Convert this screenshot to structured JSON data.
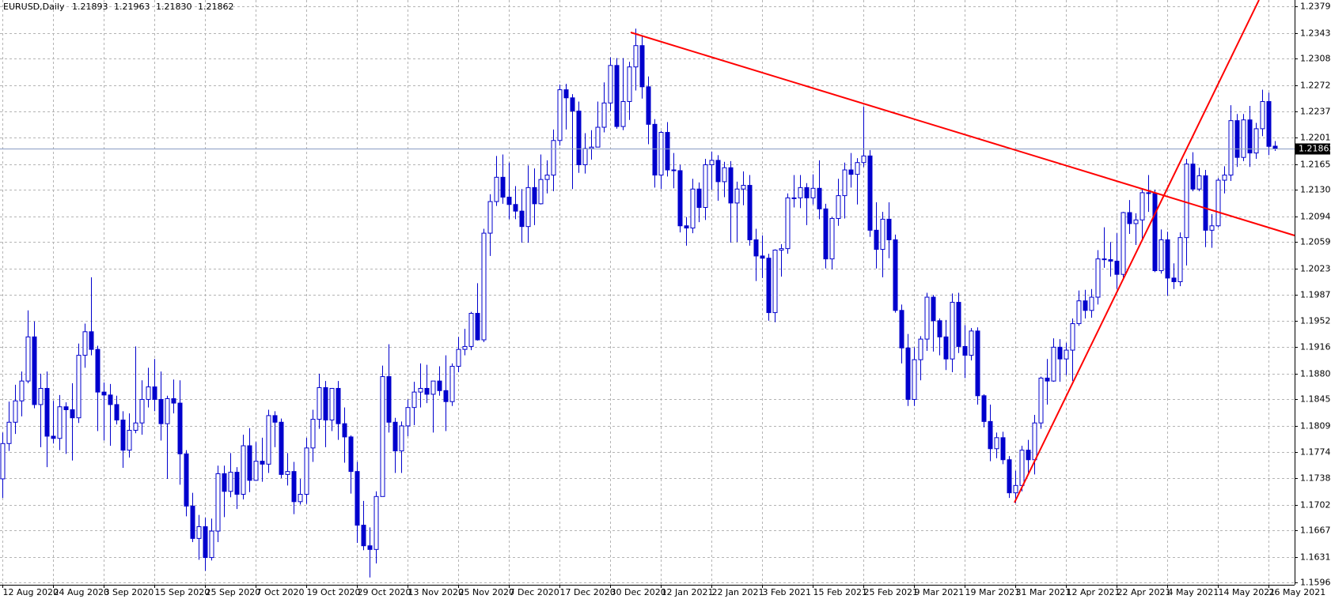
{
  "chart_data": {
    "type": "candlestick",
    "symbol": "EURUSD,Daily",
    "last_bar_labels": [
      "1.21893",
      "1.21963",
      "1.21830",
      "1.21862"
    ],
    "candle_color": "#0000cd",
    "bull_fill": "#ffffff",
    "bear_fill": "#0000cd",
    "price_line_color": "#8a9cc2",
    "grid": true,
    "ylim": [
      1.1593,
      1.2388
    ],
    "yticks": [
      {
        "value": 1.2379,
        "label": "1.23790"
      },
      {
        "value": 1.2343,
        "label": "1.23430"
      },
      {
        "value": 1.2308,
        "label": "1.23080"
      },
      {
        "value": 1.2272,
        "label": "1.22720"
      },
      {
        "value": 1.2237,
        "label": "1.22370"
      },
      {
        "value": 1.2201,
        "label": "1.22010"
      },
      {
        "value": 1.2165,
        "label": "1.21650"
      },
      {
        "value": 1.213,
        "label": "1.21300"
      },
      {
        "value": 1.2094,
        "label": "1.20940"
      },
      {
        "value": 1.2059,
        "label": "1.20590"
      },
      {
        "value": 1.2023,
        "label": "1.20230"
      },
      {
        "value": 1.1987,
        "label": "1.19870"
      },
      {
        "value": 1.1952,
        "label": "1.19520"
      },
      {
        "value": 1.1916,
        "label": "1.19160"
      },
      {
        "value": 1.188,
        "label": "1.18800"
      },
      {
        "value": 1.1845,
        "label": "1.18450"
      },
      {
        "value": 1.1809,
        "label": "1.18090"
      },
      {
        "value": 1.1774,
        "label": "1.17740"
      },
      {
        "value": 1.1738,
        "label": "1.17380"
      },
      {
        "value": 1.1702,
        "label": "1.17020"
      },
      {
        "value": 1.1667,
        "label": "1.16670"
      },
      {
        "value": 1.1631,
        "label": "1.16310"
      },
      {
        "value": 1.1596,
        "label": "1.15960"
      }
    ],
    "categories": [
      "12 Aug 2020",
      null,
      null,
      null,
      null,
      null,
      null,
      null,
      "24 Aug 2020",
      null,
      null,
      null,
      null,
      null,
      null,
      null,
      "3 Sep 2020",
      null,
      null,
      null,
      null,
      null,
      null,
      null,
      "15 Sep 2020",
      null,
      null,
      null,
      null,
      null,
      null,
      null,
      "25 Sep 2020",
      null,
      null,
      null,
      null,
      null,
      null,
      null,
      "7 Oct 2020",
      null,
      null,
      null,
      null,
      null,
      null,
      null,
      "19 Oct 2020",
      null,
      null,
      null,
      null,
      null,
      null,
      null,
      "29 Oct 2020",
      null,
      null,
      null,
      null,
      null,
      null,
      null,
      "13 Nov 2020",
      null,
      null,
      null,
      null,
      null,
      null,
      null,
      "25 Nov 2020",
      null,
      null,
      null,
      null,
      null,
      null,
      null,
      "7 Dec 2020",
      null,
      null,
      null,
      null,
      null,
      null,
      null,
      "17 Dec 2020",
      null,
      null,
      null,
      null,
      null,
      null,
      null,
      "30 Dec 2020",
      null,
      null,
      null,
      null,
      null,
      null,
      null,
      "12 Jan 2021",
      null,
      null,
      null,
      null,
      null,
      null,
      null,
      "22 Jan 2021",
      null,
      null,
      null,
      null,
      null,
      null,
      null,
      "3 Feb 2021",
      null,
      null,
      null,
      null,
      null,
      null,
      null,
      "15 Feb 2021",
      null,
      null,
      null,
      null,
      null,
      null,
      null,
      "25 Feb 2021",
      null,
      null,
      null,
      null,
      null,
      null,
      null,
      "9 Mar 2021",
      null,
      null,
      null,
      null,
      null,
      null,
      null,
      "19 Mar 2021",
      null,
      null,
      null,
      null,
      null,
      null,
      null,
      "31 Mar 2021",
      null,
      null,
      null,
      null,
      null,
      null,
      null,
      "12 Apr 2021",
      null,
      null,
      null,
      null,
      null,
      null,
      null,
      "22 Apr 2021",
      null,
      null,
      null,
      null,
      null,
      null,
      null,
      "4 May 2021",
      null,
      null,
      null,
      null,
      null,
      null,
      null,
      "14 May 2021",
      null,
      null,
      null,
      null,
      null,
      null,
      null,
      "26 May 2021",
      null
    ],
    "open": [
      1.1737,
      1.1785,
      1.1814,
      1.1843,
      1.187,
      1.193,
      1.1838,
      1.186,
      1.1795,
      1.1792,
      1.1835,
      1.1831,
      1.182,
      1.1905,
      1.1937,
      1.1913,
      1.1855,
      1.1851,
      1.1838,
      1.1817,
      1.1776,
      1.1803,
      1.1813,
      1.1845,
      1.1862,
      1.1845,
      1.1812,
      1.1846,
      1.184,
      1.1771,
      1.17,
      1.1656,
      1.1672,
      1.163,
      1.1666,
      1.1744,
      1.172,
      1.1746,
      1.1716,
      1.1782,
      1.1735,
      1.1761,
      1.1757,
      1.1823,
      1.1814,
      1.1743,
      1.1747,
      1.1706,
      1.1716,
      1.1779,
      1.1818,
      1.1861,
      1.1817,
      1.186,
      1.1812,
      1.1794,
      1.1747,
      1.1674,
      1.1646,
      1.1641,
      1.1713,
      1.1876,
      1.1814,
      1.1775,
      1.1809,
      1.1834,
      1.1855,
      1.186,
      1.1852,
      1.187,
      1.1857,
      1.1842,
      1.189,
      1.1913,
      1.1917,
      1.1962,
      1.1926,
      1.2071,
      1.2114,
      1.2147,
      1.212,
      1.211,
      1.2101,
      1.208,
      1.2133,
      1.2111,
      1.2144,
      1.215,
      1.2197,
      1.2266,
      1.2255,
      1.2237,
      1.2164,
      1.2186,
      1.2188,
      1.2215,
      1.2248,
      1.2299,
      1.2216,
      1.225,
      1.2297,
      1.2326,
      1.227,
      1.2219,
      1.215,
      1.2208,
      1.2157,
      1.2156,
      1.2081,
      1.2078,
      1.2131,
      1.2106,
      1.2164,
      1.217,
      1.2141,
      1.216,
      1.2112,
      1.2131,
      1.2136,
      1.2062,
      1.204,
      1.2037,
      1.1963,
      1.2048,
      1.205,
      1.2119,
      1.2119,
      1.2133,
      1.2119,
      1.2132,
      1.2104,
      1.2036,
      1.2091,
      1.2122,
      1.2157,
      1.2151,
      1.2167,
      1.2176,
      1.2075,
      1.2049,
      1.209,
      1.2062,
      1.1966,
      1.1915,
      1.1845,
      1.1899,
      1.1927,
      1.1984,
      1.1952,
      1.193,
      1.19,
      1.1977,
      1.1917,
      1.1905,
      1.1938,
      1.185,
      1.1815,
      1.1778,
      1.1793,
      1.1763,
      1.1718,
      1.1728,
      1.1776,
      1.1763,
      1.1813,
      1.1874,
      1.187,
      1.1916,
      1.19,
      1.1912,
      1.1948,
      1.1979,
      1.1966,
      1.1984,
      1.2036,
      1.2035,
      1.2033,
      1.2015,
      1.2099,
      1.2084,
      1.2089,
      1.2126,
      1.2125,
      1.202,
      1.2062,
      1.201,
      1.2005,
      1.2065,
      1.2165,
      1.2131,
      1.2149,
      1.2075,
      1.2081,
      1.2143,
      1.215,
      1.2224,
      1.2174,
      1.2225,
      1.218,
      1.2213,
      1.225,
      1.21893
    ],
    "high": [
      1.18,
      1.1842,
      1.1865,
      1.1883,
      1.1966,
      1.1951,
      1.188,
      1.1883,
      1.1843,
      1.1851,
      1.1841,
      1.1867,
      1.1921,
      1.1948,
      1.2011,
      1.1918,
      1.1868,
      1.1866,
      1.185,
      1.1829,
      1.1826,
      1.1917,
      1.1871,
      1.1888,
      1.19,
      1.1883,
      1.185,
      1.1872,
      1.1871,
      1.1776,
      1.1718,
      1.1688,
      1.1684,
      1.1683,
      1.1755,
      1.1755,
      1.1772,
      1.1753,
      1.1797,
      1.1806,
      1.1787,
      1.1793,
      1.1831,
      1.1829,
      1.1819,
      1.1772,
      1.176,
      1.1737,
      1.1793,
      1.1831,
      1.188,
      1.187,
      1.186,
      1.187,
      1.1834,
      1.1796,
      1.176,
      1.1707,
      1.1671,
      1.172,
      1.1891,
      1.192,
      1.182,
      1.1815,
      1.1845,
      1.1869,
      1.1894,
      1.1892,
      1.187,
      1.189,
      1.1905,
      1.1894,
      1.193,
      1.1941,
      1.1964,
      1.2003,
      1.2077,
      1.2124,
      1.2176,
      1.2178,
      1.2167,
      1.2135,
      1.2131,
      1.2163,
      1.2159,
      1.2178,
      1.217,
      1.2212,
      1.2273,
      1.2274,
      1.226,
      1.225,
      1.2207,
      1.2211,
      1.225,
      1.2276,
      1.231,
      1.2309,
      1.2309,
      1.2304,
      1.2349,
      1.2338,
      1.2284,
      1.2226,
      1.221,
      1.2222,
      1.218,
      1.2164,
      1.2093,
      1.2145,
      1.214,
      1.2172,
      1.2182,
      1.2177,
      1.2168,
      1.2169,
      1.2141,
      1.2155,
      1.215,
      1.2077,
      1.2068,
      1.2043,
      1.2049,
      1.2056,
      1.2125,
      1.215,
      1.215,
      1.2139,
      1.2151,
      1.217,
      1.2111,
      1.2093,
      1.2145,
      1.2167,
      1.218,
      1.2173,
      1.2243,
      1.2184,
      1.2113,
      1.21,
      1.2113,
      1.2069,
      1.1974,
      1.1934,
      1.1916,
      1.1931,
      1.199,
      1.1987,
      1.1955,
      1.1953,
      1.1989,
      1.199,
      1.1946,
      1.1942,
      1.1943,
      1.1852,
      1.1838,
      1.18,
      1.1801,
      1.1768,
      1.1748,
      1.1782,
      1.179,
      1.1824,
      1.1876,
      1.19,
      1.1928,
      1.1927,
      1.1922,
      1.1955,
      1.1993,
      1.1994,
      1.1995,
      1.2048,
      1.2079,
      1.2059,
      1.2071,
      1.21,
      1.2116,
      1.2098,
      1.213,
      1.215,
      1.213,
      1.2076,
      1.2073,
      1.203,
      1.2072,
      1.2172,
      1.2181,
      1.216,
      1.2157,
      1.2097,
      1.2146,
      1.2162,
      1.2245,
      1.2233,
      1.2233,
      1.2244,
      1.2221,
      1.2266,
      1.2262,
      1.21963
    ],
    "low": [
      1.1711,
      1.1775,
      1.1798,
      1.1822,
      1.1867,
      1.1833,
      1.178,
      1.1753,
      1.1785,
      1.1776,
      1.1771,
      1.1762,
      1.1813,
      1.1888,
      1.1905,
      1.1802,
      1.1789,
      1.1782,
      1.1811,
      1.1752,
      1.1766,
      1.1799,
      1.1797,
      1.1834,
      1.1829,
      1.1789,
      1.1737,
      1.1826,
      1.1729,
      1.1686,
      1.1651,
      1.1627,
      1.1612,
      1.1626,
      1.1651,
      1.1685,
      1.1712,
      1.1696,
      1.1709,
      1.1719,
      1.1735,
      1.1733,
      1.1745,
      1.178,
      1.1738,
      1.1728,
      1.1689,
      1.1702,
      1.1703,
      1.176,
      1.1805,
      1.178,
      1.1802,
      1.179,
      1.1759,
      1.1717,
      1.165,
      1.164,
      1.1603,
      1.1622,
      1.1713,
      1.18,
      1.1745,
      1.1745,
      1.1795,
      1.181,
      1.1834,
      1.184,
      1.18,
      1.185,
      1.1802,
      1.1836,
      1.1882,
      1.1905,
      1.1912,
      1.1925,
      1.1923,
      1.204,
      1.2108,
      1.2111,
      1.209,
      1.209,
      1.2058,
      1.2058,
      1.2082,
      1.211,
      1.2125,
      1.2128,
      1.219,
      1.2212,
      1.2131,
      1.2153,
      1.2152,
      1.2171,
      1.2188,
      1.2208,
      1.2237,
      1.2213,
      1.2211,
      1.2225,
      1.2265,
      1.2254,
      1.2192,
      1.2133,
      1.2131,
      1.2148,
      1.2132,
      1.2072,
      1.2054,
      1.2071,
      1.2086,
      1.2089,
      1.213,
      1.2115,
      1.212,
      1.2058,
      1.2059,
      1.2109,
      1.2054,
      1.2006,
      1.201,
      1.1952,
      1.195,
      1.2012,
      1.2043,
      1.2106,
      1.2105,
      1.2082,
      1.211,
      1.209,
      1.2023,
      1.2022,
      1.2081,
      1.2091,
      1.2133,
      1.211,
      1.2161,
      1.2066,
      1.2023,
      1.2011,
      1.2037,
      1.1963,
      1.1894,
      1.1836,
      1.1836,
      1.1871,
      1.1911,
      1.191,
      1.1905,
      1.1885,
      1.1882,
      1.1908,
      1.1874,
      1.1898,
      1.1838,
      1.1807,
      1.1761,
      1.1765,
      1.1757,
      1.1711,
      1.1704,
      1.172,
      1.1745,
      1.1743,
      1.1805,
      1.1838,
      1.1869,
      1.1869,
      1.1878,
      1.187,
      1.1945,
      1.1955,
      1.1956,
      1.1974,
      1.2024,
      1.2012,
      1.1995,
      1.2008,
      1.207,
      1.2055,
      1.206,
      1.21,
      1.2018,
      1.2016,
      1.1986,
      1.1995,
      1.1999,
      1.2027,
      1.2128,
      1.2128,
      1.2052,
      1.2051,
      1.2079,
      1.2125,
      1.2142,
      1.2161,
      1.2169,
      1.2161,
      1.2172,
      1.2203,
      1.2177,
      1.2183
    ],
    "close": [
      1.1785,
      1.1814,
      1.1843,
      1.187,
      1.193,
      1.1838,
      1.186,
      1.1795,
      1.1792,
      1.1835,
      1.1831,
      1.182,
      1.1905,
      1.1937,
      1.1913,
      1.1855,
      1.1851,
      1.1838,
      1.1817,
      1.1776,
      1.1803,
      1.1813,
      1.1845,
      1.1862,
      1.1845,
      1.1812,
      1.1846,
      1.184,
      1.1771,
      1.17,
      1.1656,
      1.1672,
      1.163,
      1.1666,
      1.1744,
      1.172,
      1.1746,
      1.1716,
      1.1782,
      1.1735,
      1.1761,
      1.1757,
      1.1823,
      1.1814,
      1.1743,
      1.1747,
      1.1706,
      1.1716,
      1.1779,
      1.1818,
      1.1861,
      1.1817,
      1.186,
      1.1812,
      1.1794,
      1.1747,
      1.1674,
      1.1646,
      1.1641,
      1.1713,
      1.1876,
      1.1814,
      1.1775,
      1.1809,
      1.1834,
      1.1855,
      1.186,
      1.1852,
      1.187,
      1.1857,
      1.1842,
      1.189,
      1.1913,
      1.1917,
      1.1962,
      1.1926,
      1.2071,
      1.2114,
      1.2147,
      1.212,
      1.211,
      1.2101,
      1.208,
      1.2133,
      1.2111,
      1.2144,
      1.215,
      1.2197,
      1.2266,
      1.2255,
      1.2237,
      1.2164,
      1.2186,
      1.2188,
      1.2215,
      1.2248,
      1.2299,
      1.2216,
      1.225,
      1.2297,
      1.2326,
      1.227,
      1.2219,
      1.215,
      1.2208,
      1.2157,
      1.2156,
      1.2081,
      1.2078,
      1.2131,
      1.2106,
      1.2164,
      1.217,
      1.2141,
      1.216,
      1.2112,
      1.2131,
      1.2136,
      1.2062,
      1.204,
      1.2037,
      1.1963,
      1.2048,
      1.205,
      1.2119,
      1.2119,
      1.2133,
      1.2119,
      1.2132,
      1.2104,
      1.2036,
      1.2091,
      1.2122,
      1.2157,
      1.2151,
      1.2167,
      1.2176,
      1.2075,
      1.2049,
      1.209,
      1.2062,
      1.1966,
      1.1915,
      1.1845,
      1.1899,
      1.1927,
      1.1984,
      1.1952,
      1.193,
      1.19,
      1.1977,
      1.1917,
      1.1905,
      1.1938,
      1.185,
      1.1815,
      1.1778,
      1.1793,
      1.1763,
      1.1718,
      1.1728,
      1.1776,
      1.1763,
      1.1813,
      1.1874,
      1.187,
      1.1916,
      1.19,
      1.1912,
      1.1948,
      1.1979,
      1.1966,
      1.1984,
      1.2036,
      1.2035,
      1.2033,
      1.2015,
      1.2099,
      1.2084,
      1.2089,
      1.2126,
      1.2125,
      1.202,
      1.2062,
      1.201,
      1.2005,
      1.2065,
      1.2165,
      1.2131,
      1.2149,
      1.2075,
      1.2081,
      1.2143,
      1.215,
      1.2224,
      1.2174,
      1.2225,
      1.218,
      1.2213,
      1.225,
      1.2189,
      1.21862
    ]
  }
}
